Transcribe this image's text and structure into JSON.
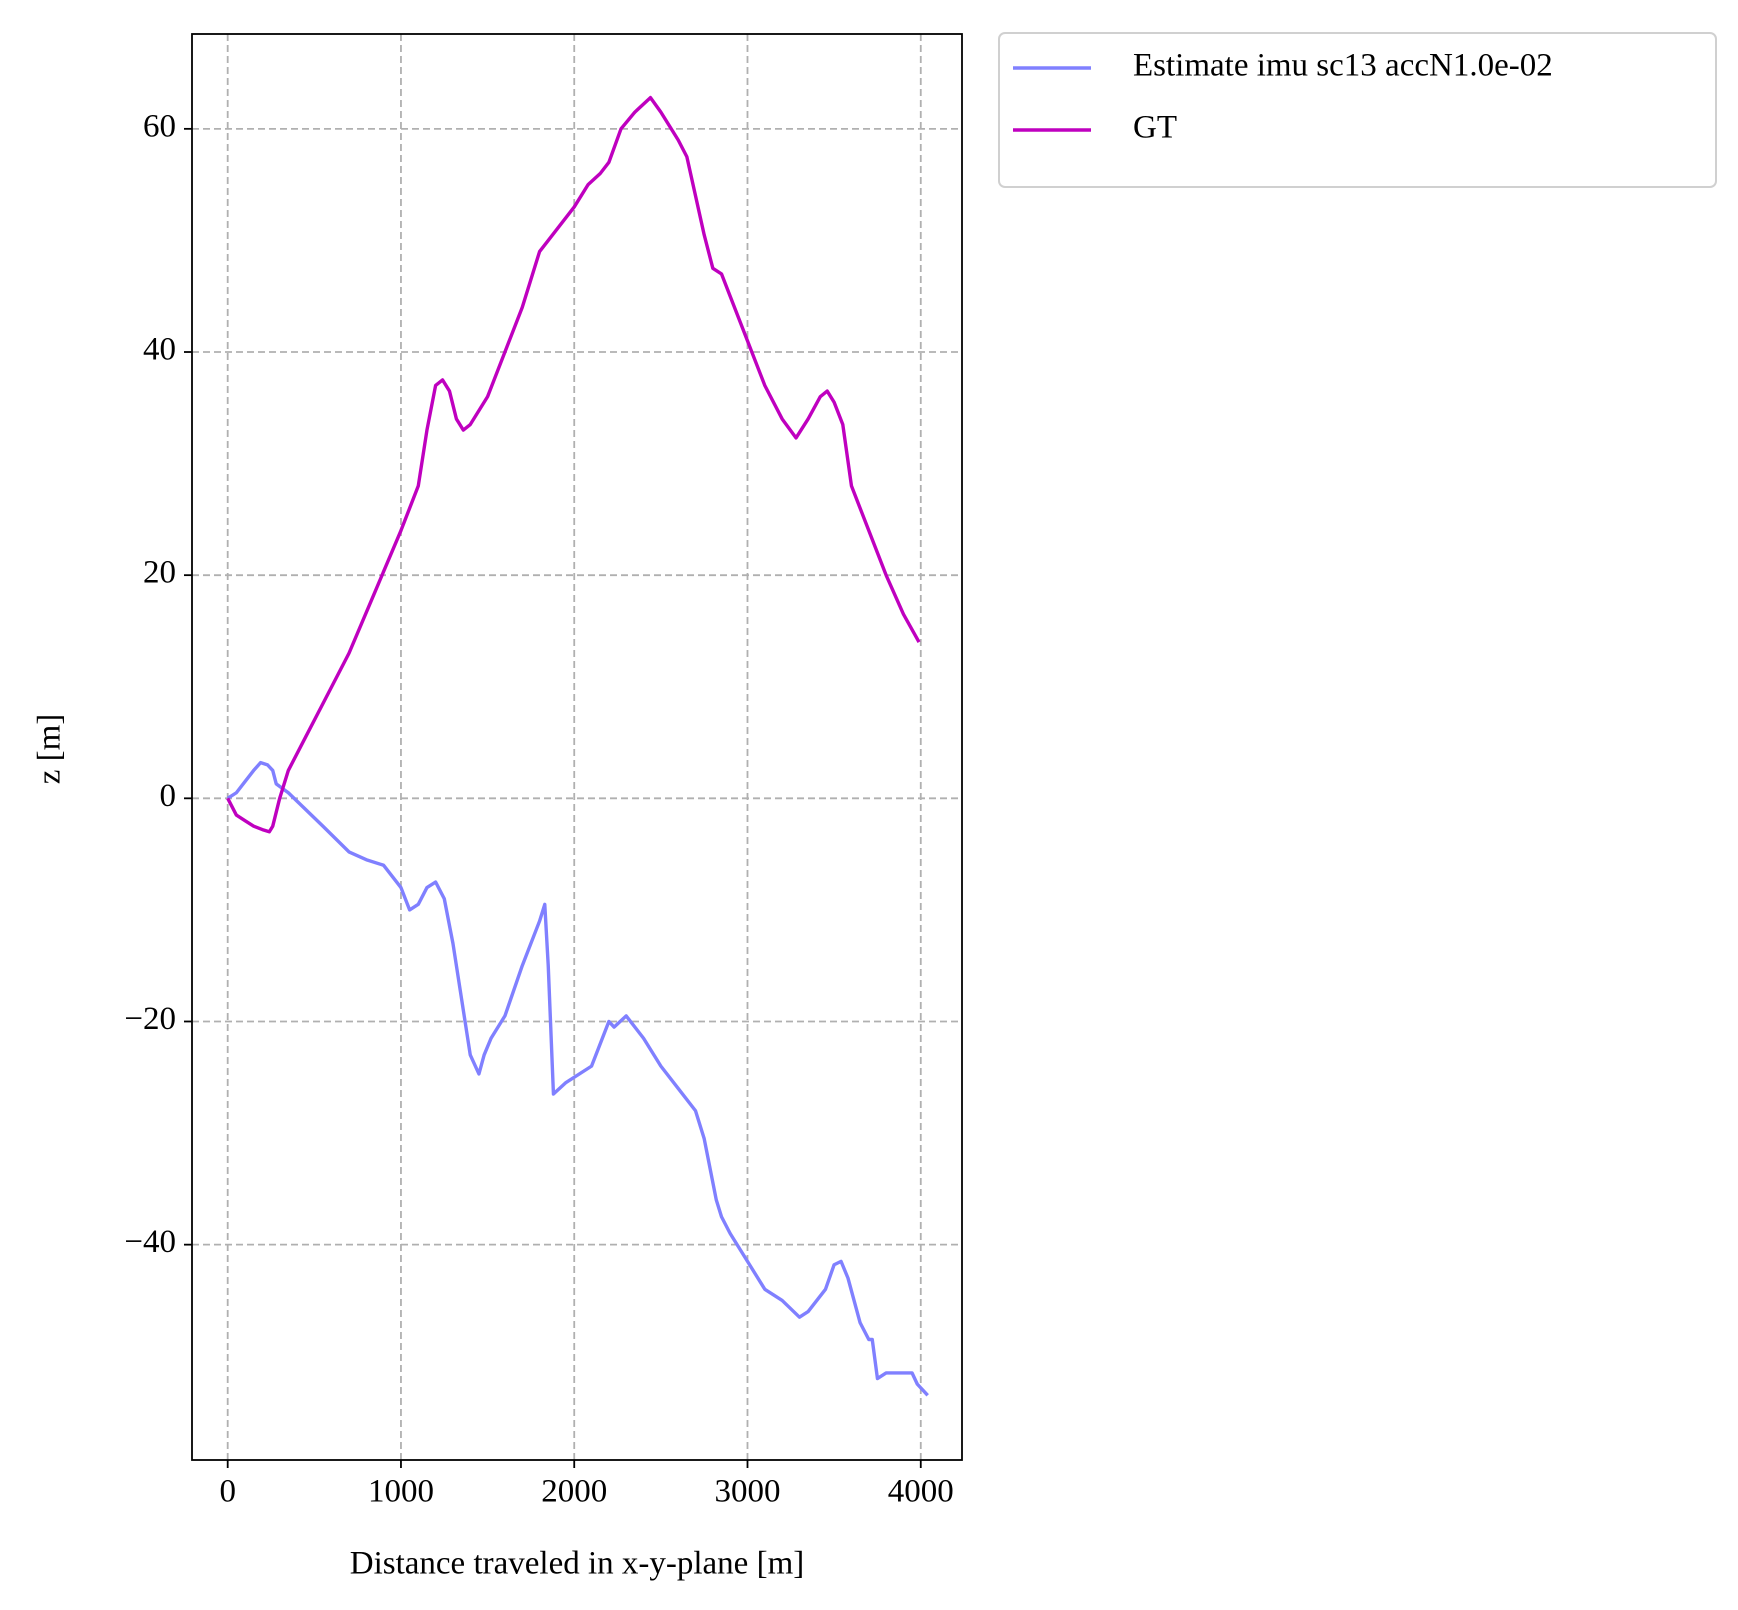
{
  "chart_data": {
    "type": "line",
    "xlabel": "Distance traveled in x-y-plane [m]",
    "ylabel": "z [m]",
    "xlim": [
      -206,
      4238
    ],
    "ylim": [
      -59.3,
      68.5
    ],
    "xticks": [
      0,
      1000,
      2000,
      3000,
      4000
    ],
    "yticks": [
      {
        "value": -40,
        "label": "−40"
      },
      {
        "value": -20,
        "label": "−20"
      },
      0,
      20,
      40,
      60
    ],
    "grid": true,
    "legend": "outside upper right",
    "series": [
      {
        "name": "Estimate imu sc13 accN1.0e-02",
        "color": "#8080ff",
        "x": [
          0,
          50,
          100,
          150,
          190,
          230,
          260,
          280,
          350,
          450,
          550,
          700,
          800,
          900,
          1000,
          1050,
          1100,
          1150,
          1200,
          1250,
          1300,
          1350,
          1400,
          1450,
          1480,
          1520,
          1600,
          1700,
          1800,
          1830,
          1850,
          1880,
          1950,
          2100,
          2200,
          2230,
          2300,
          2400,
          2500,
          2600,
          2700,
          2750,
          2820,
          2850,
          2900,
          3000,
          3100,
          3200,
          3300,
          3350,
          3450,
          3500,
          3540,
          3580,
          3650,
          3700,
          3720,
          3750,
          3800,
          3900,
          3950,
          3980,
          4040
        ],
        "values": [
          0,
          0.5,
          1.5,
          2.5,
          3.2,
          3,
          2.5,
          1.3,
          0.5,
          -1,
          -2.5,
          -4.8,
          -5.5,
          -6,
          -8,
          -10,
          -9.5,
          -8,
          -7.5,
          -9,
          -13,
          -18,
          -23,
          -24.7,
          -23,
          -21.5,
          -19.5,
          -15,
          -11,
          -9.5,
          -15,
          -26.5,
          -25.5,
          -24,
          -20,
          -20.5,
          -19.5,
          -21.5,
          -24,
          -26,
          -28,
          -30.5,
          -36,
          -37.5,
          -39,
          -41.5,
          -44,
          -45,
          -46.5,
          -46,
          -44,
          -41.8,
          -41.5,
          -43,
          -47,
          -48.5,
          -48.5,
          -52,
          -51.5,
          -51.5,
          -51.5,
          -52.5,
          -53.5
        ]
      },
      {
        "name": "GT",
        "color": "#bf00bf",
        "x": [
          0,
          50,
          100,
          150,
          200,
          240,
          260,
          300,
          350,
          450,
          550,
          700,
          850,
          1000,
          1100,
          1150,
          1200,
          1240,
          1280,
          1320,
          1360,
          1400,
          1500,
          1600,
          1700,
          1800,
          1850,
          2000,
          2080,
          2150,
          2200,
          2270,
          2350,
          2440,
          2500,
          2600,
          2650,
          2700,
          2750,
          2800,
          2850,
          2900,
          3000,
          3100,
          3200,
          3280,
          3350,
          3420,
          3460,
          3500,
          3550,
          3600,
          3700,
          3800,
          3900,
          3990
        ],
        "values": [
          0,
          -1.5,
          -2,
          -2.5,
          -2.8,
          -3,
          -2.5,
          0,
          2.5,
          5.5,
          8.5,
          13,
          18.5,
          24,
          28,
          33,
          37,
          37.5,
          36.5,
          34,
          33,
          33.5,
          36,
          40,
          44,
          49,
          50,
          53,
          55,
          56,
          57,
          60,
          61.5,
          62.8,
          61.5,
          59,
          57.5,
          54,
          50.5,
          47.5,
          47,
          45,
          41,
          37,
          34,
          32.3,
          34,
          36,
          36.5,
          35.5,
          33.5,
          28,
          24,
          20,
          16.5,
          14
        ]
      }
    ]
  }
}
